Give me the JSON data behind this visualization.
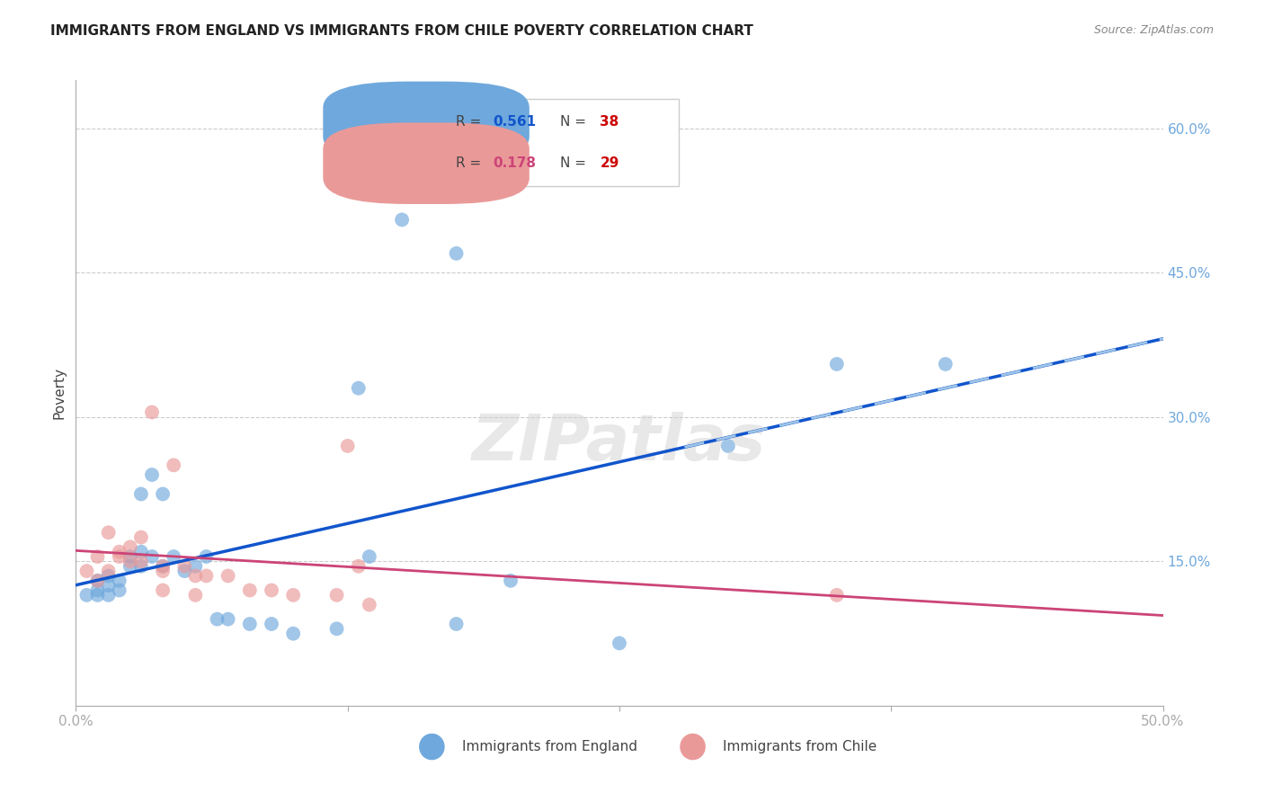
{
  "title": "IMMIGRANTS FROM ENGLAND VS IMMIGRANTS FROM CHILE POVERTY CORRELATION CHART",
  "source": "Source: ZipAtlas.com",
  "ylabel": "Poverty",
  "right_yticklabels": [
    "",
    "15.0%",
    "30.0%",
    "45.0%",
    "60.0%"
  ],
  "xlim": [
    0.0,
    0.5
  ],
  "ylim": [
    0.0,
    0.65
  ],
  "watermark": "ZIPatlas",
  "england_color": "#6fa8dc",
  "chile_color": "#ea9999",
  "england_scatter": [
    [
      0.005,
      0.115
    ],
    [
      0.01,
      0.12
    ],
    [
      0.01,
      0.13
    ],
    [
      0.01,
      0.115
    ],
    [
      0.015,
      0.125
    ],
    [
      0.015,
      0.135
    ],
    [
      0.015,
      0.115
    ],
    [
      0.02,
      0.13
    ],
    [
      0.02,
      0.12
    ],
    [
      0.025,
      0.145
    ],
    [
      0.025,
      0.155
    ],
    [
      0.03,
      0.22
    ],
    [
      0.03,
      0.145
    ],
    [
      0.03,
      0.16
    ],
    [
      0.035,
      0.24
    ],
    [
      0.035,
      0.155
    ],
    [
      0.04,
      0.22
    ],
    [
      0.04,
      0.145
    ],
    [
      0.045,
      0.155
    ],
    [
      0.05,
      0.14
    ],
    [
      0.055,
      0.145
    ],
    [
      0.06,
      0.155
    ],
    [
      0.065,
      0.09
    ],
    [
      0.07,
      0.09
    ],
    [
      0.08,
      0.085
    ],
    [
      0.09,
      0.085
    ],
    [
      0.1,
      0.075
    ],
    [
      0.12,
      0.08
    ],
    [
      0.13,
      0.33
    ],
    [
      0.135,
      0.155
    ],
    [
      0.15,
      0.505
    ],
    [
      0.175,
      0.47
    ],
    [
      0.175,
      0.085
    ],
    [
      0.2,
      0.13
    ],
    [
      0.25,
      0.065
    ],
    [
      0.3,
      0.27
    ],
    [
      0.35,
      0.355
    ],
    [
      0.4,
      0.355
    ]
  ],
  "chile_scatter": [
    [
      0.005,
      0.14
    ],
    [
      0.01,
      0.155
    ],
    [
      0.01,
      0.13
    ],
    [
      0.015,
      0.18
    ],
    [
      0.015,
      0.14
    ],
    [
      0.02,
      0.16
    ],
    [
      0.02,
      0.155
    ],
    [
      0.025,
      0.15
    ],
    [
      0.025,
      0.165
    ],
    [
      0.03,
      0.175
    ],
    [
      0.03,
      0.15
    ],
    [
      0.035,
      0.305
    ],
    [
      0.04,
      0.145
    ],
    [
      0.04,
      0.14
    ],
    [
      0.04,
      0.12
    ],
    [
      0.045,
      0.25
    ],
    [
      0.05,
      0.145
    ],
    [
      0.055,
      0.135
    ],
    [
      0.055,
      0.115
    ],
    [
      0.06,
      0.135
    ],
    [
      0.07,
      0.135
    ],
    [
      0.08,
      0.12
    ],
    [
      0.09,
      0.12
    ],
    [
      0.1,
      0.115
    ],
    [
      0.12,
      0.115
    ],
    [
      0.125,
      0.27
    ],
    [
      0.13,
      0.145
    ],
    [
      0.35,
      0.115
    ],
    [
      0.135,
      0.105
    ]
  ],
  "england_line_color": "#1155cc",
  "chile_line_color": "#cc4477",
  "england_dash_color": "#9fc5e8",
  "right_tick_color": "#6fa8dc",
  "grid_color": "#cccccc",
  "bg_color": "#ffffff",
  "ytick_vals": [
    0.0,
    0.15,
    0.3,
    0.45,
    0.6
  ]
}
